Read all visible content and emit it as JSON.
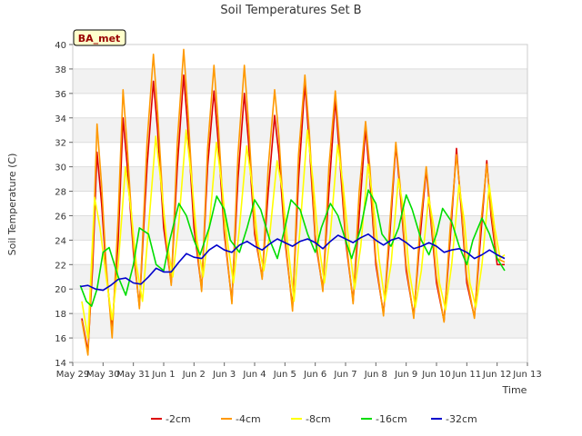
{
  "chart_data": {
    "type": "line",
    "title": "Soil Temperatures Set B",
    "xlabel": "Time",
    "ylabel": "Soil Temperature (C)",
    "annotation": "BA_met",
    "ylim": [
      14,
      40
    ],
    "xlim": [
      0,
      15
    ],
    "x_ticks": [
      {
        "t": 0,
        "label": "May 29"
      },
      {
        "t": 1,
        "label": "May 30"
      },
      {
        "t": 2,
        "label": "May 31"
      },
      {
        "t": 3,
        "label": "Jun 1"
      },
      {
        "t": 4,
        "label": "Jun 2"
      },
      {
        "t": 5,
        "label": "Jun 3"
      },
      {
        "t": 6,
        "label": "Jun 4"
      },
      {
        "t": 7,
        "label": "Jun 5"
      },
      {
        "t": 8,
        "label": "Jun 6"
      },
      {
        "t": 9,
        "label": "Jun 7"
      },
      {
        "t": 10,
        "label": "Jun 8"
      },
      {
        "t": 11,
        "label": "Jun 9"
      },
      {
        "t": 12,
        "label": "Jun 10"
      },
      {
        "t": 13,
        "label": "Jun 11"
      },
      {
        "t": 14,
        "label": "Jun 12"
      },
      {
        "t": 15,
        "label": "Jun 13"
      }
    ],
    "y_ticks": [
      14,
      16,
      18,
      20,
      22,
      24,
      26,
      28,
      30,
      32,
      34,
      36,
      38,
      40
    ],
    "grid": true,
    "legend_position": "bottom",
    "series": [
      {
        "name": "-2cm",
        "color": "#dd0000",
        "x": [
          0.3,
          0.5,
          0.66,
          0.8,
          0.95,
          1.1,
          1.3,
          1.5,
          1.66,
          1.8,
          2.0,
          2.2,
          2.45,
          2.66,
          2.8,
          3.0,
          3.25,
          3.45,
          3.66,
          3.8,
          4.0,
          4.25,
          4.45,
          4.66,
          4.8,
          5.0,
          5.25,
          5.45,
          5.66,
          5.8,
          6.0,
          6.25,
          6.45,
          6.66,
          6.8,
          7.0,
          7.25,
          7.45,
          7.66,
          7.8,
          8.0,
          8.25,
          8.45,
          8.66,
          8.8,
          9.0,
          9.25,
          9.45,
          9.66,
          9.8,
          10.0,
          10.25,
          10.45,
          10.66,
          10.8,
          11.0,
          11.25,
          11.45,
          11.66,
          11.8,
          12.0,
          12.25,
          12.45,
          12.66,
          12.8,
          13.0,
          13.25,
          13.45,
          13.66,
          13.8,
          14.0,
          14.25
        ],
        "values": [
          17.6,
          14.9,
          22.0,
          31.2,
          27.0,
          21.5,
          16.8,
          24.0,
          34.0,
          30.0,
          23.0,
          18.6,
          30.0,
          37.0,
          33.0,
          25.0,
          20.5,
          30.0,
          37.5,
          33.0,
          25.0,
          20.0,
          30.0,
          36.2,
          32.0,
          24.5,
          19.0,
          29.0,
          36.0,
          32.0,
          24.5,
          21.0,
          28.0,
          34.2,
          31.0,
          24.0,
          18.5,
          29.0,
          36.8,
          32.0,
          24.0,
          20.0,
          28.0,
          35.5,
          31.0,
          24.0,
          19.0,
          26.0,
          33.2,
          29.0,
          22.0,
          18.0,
          24.0,
          31.8,
          28.0,
          21.5,
          17.8,
          24.0,
          29.8,
          26.0,
          20.5,
          17.4,
          24.0,
          31.5,
          27.0,
          20.5,
          17.7,
          24.0,
          30.5,
          26.0,
          22.0,
          22.0
        ]
      },
      {
        "name": "-4cm",
        "color": "#ff9900",
        "x": [
          0.3,
          0.5,
          0.66,
          0.8,
          0.95,
          1.1,
          1.3,
          1.5,
          1.66,
          1.8,
          2.0,
          2.2,
          2.45,
          2.66,
          2.8,
          3.0,
          3.25,
          3.45,
          3.66,
          3.8,
          4.0,
          4.25,
          4.45,
          4.66,
          4.8,
          5.0,
          5.25,
          5.45,
          5.66,
          5.8,
          6.0,
          6.25,
          6.45,
          6.66,
          6.8,
          7.0,
          7.25,
          7.45,
          7.66,
          7.8,
          8.0,
          8.25,
          8.45,
          8.66,
          8.8,
          9.0,
          9.25,
          9.45,
          9.66,
          9.8,
          10.0,
          10.25,
          10.45,
          10.66,
          10.8,
          11.0,
          11.25,
          11.45,
          11.66,
          11.8,
          12.0,
          12.25,
          12.45,
          12.66,
          12.8,
          13.0,
          13.25,
          13.45,
          13.66,
          13.8,
          14.0,
          14.25
        ],
        "values": [
          17.4,
          14.6,
          23.0,
          33.5,
          28.5,
          22.0,
          16.0,
          26.0,
          36.3,
          31.5,
          23.5,
          18.4,
          32.0,
          39.2,
          34.5,
          26.0,
          20.3,
          32.0,
          39.6,
          34.5,
          26.0,
          19.8,
          31.5,
          38.3,
          33.5,
          25.0,
          18.8,
          31.0,
          38.3,
          33.5,
          25.0,
          20.8,
          30.0,
          36.3,
          32.5,
          24.5,
          18.2,
          31.0,
          37.5,
          33.0,
          24.5,
          19.8,
          30.0,
          36.2,
          32.0,
          24.5,
          18.8,
          28.0,
          33.7,
          30.0,
          22.5,
          17.8,
          25.0,
          32.0,
          28.5,
          22.0,
          17.6,
          25.0,
          30.0,
          26.5,
          21.0,
          17.3,
          25.0,
          31.0,
          27.5,
          21.0,
          17.6,
          25.0,
          30.2,
          26.5,
          22.5,
          22.2
        ]
      },
      {
        "name": "-8cm",
        "color": "#ffff00",
        "x": [
          0.3,
          0.5,
          0.72,
          0.9,
          1.1,
          1.3,
          1.5,
          1.74,
          1.92,
          2.1,
          2.3,
          2.5,
          2.74,
          2.92,
          3.1,
          3.3,
          3.5,
          3.74,
          3.92,
          4.1,
          4.3,
          4.5,
          4.74,
          4.92,
          5.1,
          5.3,
          5.5,
          5.74,
          5.92,
          6.1,
          6.3,
          6.5,
          6.74,
          6.92,
          7.1,
          7.3,
          7.5,
          7.74,
          7.92,
          8.1,
          8.3,
          8.5,
          8.74,
          8.92,
          9.1,
          9.3,
          9.5,
          9.74,
          9.92,
          10.1,
          10.3,
          10.5,
          10.74,
          10.92,
          11.1,
          11.3,
          11.5,
          11.74,
          11.92,
          12.1,
          12.3,
          12.5,
          12.74,
          12.92,
          13.1,
          13.3,
          13.5,
          13.74,
          13.92,
          14.1,
          14.25
        ],
        "values": [
          19.0,
          16.0,
          27.5,
          25.0,
          21.0,
          17.5,
          22.0,
          30.0,
          26.5,
          22.0,
          19.0,
          25.0,
          32.5,
          28.5,
          24.0,
          21.0,
          25.5,
          33.0,
          29.0,
          24.0,
          21.0,
          25.0,
          32.0,
          28.5,
          24.0,
          20.5,
          25.0,
          31.7,
          28.5,
          24.0,
          21.5,
          24.5,
          30.5,
          28.0,
          23.5,
          19.0,
          25.0,
          33.0,
          29.0,
          24.0,
          20.5,
          24.5,
          31.8,
          28.5,
          24.0,
          20.0,
          23.5,
          30.2,
          27.0,
          22.5,
          19.0,
          22.0,
          29.0,
          26.5,
          21.5,
          18.5,
          21.5,
          27.5,
          25.0,
          20.5,
          18.3,
          22.0,
          28.5,
          25.5,
          20.5,
          18.5,
          22.0,
          28.5,
          25.0,
          22.5,
          22.8
        ]
      },
      {
        "name": "-16cm",
        "color": "#00dd00",
        "x": [
          0.25,
          0.45,
          0.62,
          0.8,
          1.0,
          1.2,
          1.5,
          1.75,
          2.0,
          2.2,
          2.5,
          2.75,
          3.0,
          3.2,
          3.5,
          3.75,
          4.0,
          4.2,
          4.5,
          4.75,
          5.0,
          5.2,
          5.5,
          5.75,
          6.0,
          6.2,
          6.5,
          6.75,
          7.0,
          7.2,
          7.5,
          7.75,
          8.0,
          8.2,
          8.5,
          8.75,
          9.0,
          9.2,
          9.5,
          9.75,
          10.0,
          10.2,
          10.5,
          10.75,
          11.0,
          11.2,
          11.5,
          11.75,
          12.0,
          12.2,
          12.5,
          12.75,
          13.0,
          13.2,
          13.5,
          13.75,
          14.0,
          14.25
        ],
        "values": [
          20.3,
          19.0,
          18.6,
          20.0,
          23.0,
          23.4,
          21.0,
          19.5,
          22.0,
          25.0,
          24.5,
          22.0,
          21.5,
          24.0,
          27.0,
          26.0,
          24.0,
          22.8,
          25.0,
          27.6,
          26.5,
          24.0,
          23.0,
          25.0,
          27.3,
          26.5,
          24.0,
          22.5,
          25.0,
          27.3,
          26.5,
          24.5,
          23.0,
          25.0,
          27.0,
          26.0,
          24.0,
          22.5,
          25.0,
          28.1,
          27.0,
          24.5,
          23.5,
          25.0,
          27.7,
          26.5,
          24.0,
          22.8,
          24.5,
          26.6,
          25.5,
          23.5,
          22.0,
          24.0,
          25.8,
          24.5,
          22.5,
          21.5
        ]
      },
      {
        "name": "-32cm",
        "color": "#0000cc",
        "x": [
          0.25,
          0.5,
          0.75,
          1.0,
          1.25,
          1.5,
          1.75,
          2.0,
          2.25,
          2.5,
          2.75,
          3.0,
          3.25,
          3.5,
          3.75,
          4.0,
          4.25,
          4.5,
          4.75,
          5.0,
          5.25,
          5.5,
          5.75,
          6.0,
          6.25,
          6.5,
          6.75,
          7.0,
          7.25,
          7.5,
          7.75,
          8.0,
          8.25,
          8.5,
          8.75,
          9.0,
          9.25,
          9.5,
          9.75,
          10.0,
          10.25,
          10.5,
          10.75,
          11.0,
          11.25,
          11.5,
          11.75,
          12.0,
          12.25,
          12.5,
          12.75,
          13.0,
          13.25,
          13.5,
          13.75,
          14.0,
          14.25
        ],
        "values": [
          20.2,
          20.3,
          20.0,
          19.9,
          20.3,
          20.8,
          20.9,
          20.5,
          20.4,
          21.0,
          21.7,
          21.4,
          21.4,
          22.2,
          22.9,
          22.6,
          22.5,
          23.2,
          23.6,
          23.2,
          23.0,
          23.6,
          23.9,
          23.5,
          23.2,
          23.7,
          24.1,
          23.8,
          23.5,
          23.9,
          24.1,
          23.8,
          23.3,
          23.9,
          24.4,
          24.1,
          23.8,
          24.2,
          24.5,
          24.0,
          23.6,
          24.0,
          24.2,
          23.8,
          23.3,
          23.5,
          23.8,
          23.5,
          23.0,
          23.2,
          23.3,
          23.0,
          22.5,
          22.8,
          23.2,
          22.8,
          22.5
        ]
      }
    ]
  }
}
